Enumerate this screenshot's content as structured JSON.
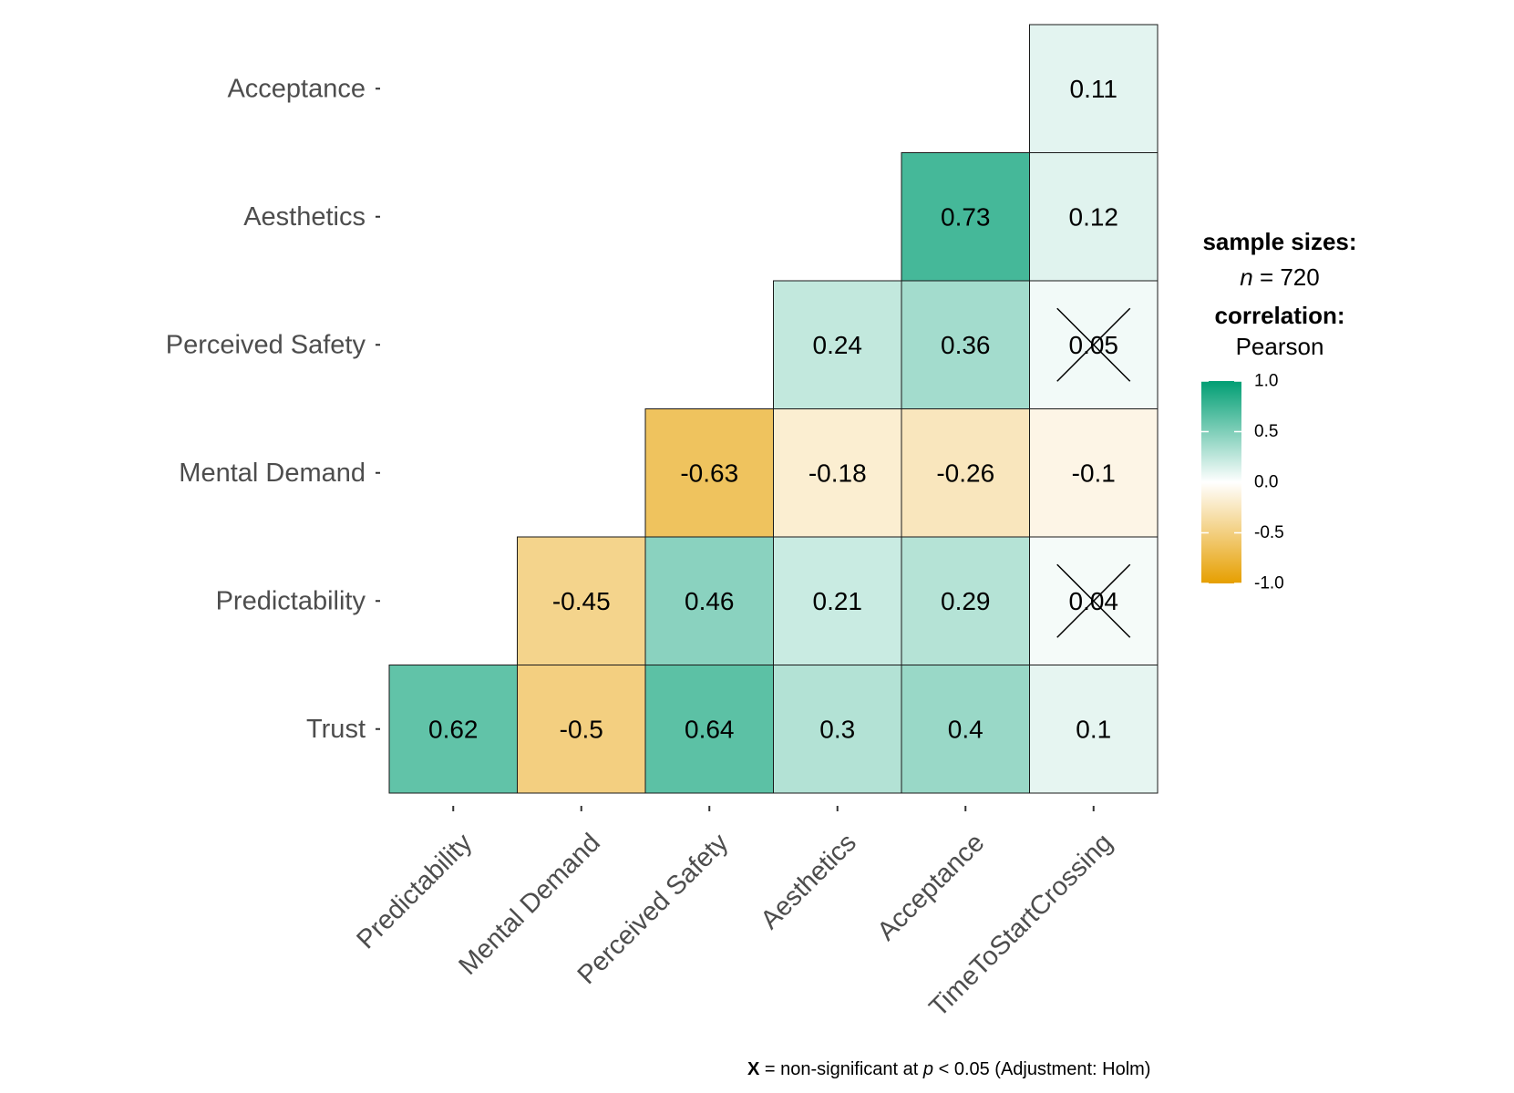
{
  "chart_data": {
    "type": "heatmap",
    "title": "",
    "x_labels": [
      "Predictability",
      "Mental Demand",
      "Perceived Safety",
      "Aesthetics",
      "Acceptance",
      "TimeToStartCrossing"
    ],
    "y_labels": [
      "Trust",
      "Predictability",
      "Mental Demand",
      "Perceived Safety",
      "Aesthetics",
      "Acceptance"
    ],
    "cells": [
      {
        "x": "Predictability",
        "y": "Trust",
        "value": 0.62,
        "label": "0.62",
        "significant": true
      },
      {
        "x": "Mental Demand",
        "y": "Trust",
        "value": -0.5,
        "label": "-0.5",
        "significant": true
      },
      {
        "x": "Perceived Safety",
        "y": "Trust",
        "value": 0.64,
        "label": "0.64",
        "significant": true
      },
      {
        "x": "Aesthetics",
        "y": "Trust",
        "value": 0.3,
        "label": "0.3",
        "significant": true
      },
      {
        "x": "Acceptance",
        "y": "Trust",
        "value": 0.4,
        "label": "0.4",
        "significant": true
      },
      {
        "x": "TimeToStartCrossing",
        "y": "Trust",
        "value": 0.1,
        "label": "0.1",
        "significant": true
      },
      {
        "x": "Mental Demand",
        "y": "Predictability",
        "value": -0.45,
        "label": "-0.45",
        "significant": true
      },
      {
        "x": "Perceived Safety",
        "y": "Predictability",
        "value": 0.46,
        "label": "0.46",
        "significant": true
      },
      {
        "x": "Aesthetics",
        "y": "Predictability",
        "value": 0.21,
        "label": "0.21",
        "significant": true
      },
      {
        "x": "Acceptance",
        "y": "Predictability",
        "value": 0.29,
        "label": "0.29",
        "significant": true
      },
      {
        "x": "TimeToStartCrossing",
        "y": "Predictability",
        "value": 0.04,
        "label": "0.04",
        "significant": false
      },
      {
        "x": "Perceived Safety",
        "y": "Mental Demand",
        "value": -0.63,
        "label": "-0.63",
        "significant": true
      },
      {
        "x": "Aesthetics",
        "y": "Mental Demand",
        "value": -0.18,
        "label": "-0.18",
        "significant": true
      },
      {
        "x": "Acceptance",
        "y": "Mental Demand",
        "value": -0.26,
        "label": "-0.26",
        "significant": true
      },
      {
        "x": "TimeToStartCrossing",
        "y": "Mental Demand",
        "value": -0.1,
        "label": "-0.1",
        "significant": true
      },
      {
        "x": "Aesthetics",
        "y": "Perceived Safety",
        "value": 0.24,
        "label": "0.24",
        "significant": true
      },
      {
        "x": "Acceptance",
        "y": "Perceived Safety",
        "value": 0.36,
        "label": "0.36",
        "significant": true
      },
      {
        "x": "TimeToStartCrossing",
        "y": "Perceived Safety",
        "value": 0.05,
        "label": "0.05",
        "significant": false
      },
      {
        "x": "Acceptance",
        "y": "Aesthetics",
        "value": 0.73,
        "label": "0.73",
        "significant": true
      },
      {
        "x": "TimeToStartCrossing",
        "y": "Aesthetics",
        "value": 0.12,
        "label": "0.12",
        "significant": true
      },
      {
        "x": "TimeToStartCrossing",
        "y": "Acceptance",
        "value": 0.11,
        "label": "0.11",
        "significant": true
      }
    ],
    "legend": {
      "sample_title": "sample sizes:",
      "n_symbol": "n",
      "n_text": " = 720",
      "correlation_title": "correlation:",
      "method": "Pearson",
      "range": [
        -1.0,
        1.0
      ],
      "ticks": [
        1.0,
        0.5,
        0.0,
        -0.5,
        -1.0
      ],
      "tick_labels": [
        "1.0",
        "0.5",
        "0.0",
        "-0.5",
        "-1.0"
      ]
    },
    "colors": {
      "high": "#009E73",
      "mid": "#ffffff",
      "low": "#E69F00",
      "cell_border": "#1a1a1a",
      "axis_text": "#4d4d4d"
    },
    "caption": {
      "symbol": "X",
      "text_before_p": " = non-significant at ",
      "p_symbol": "p",
      "text_after_p": " < 0.05 (Adjustment: Holm)"
    }
  }
}
